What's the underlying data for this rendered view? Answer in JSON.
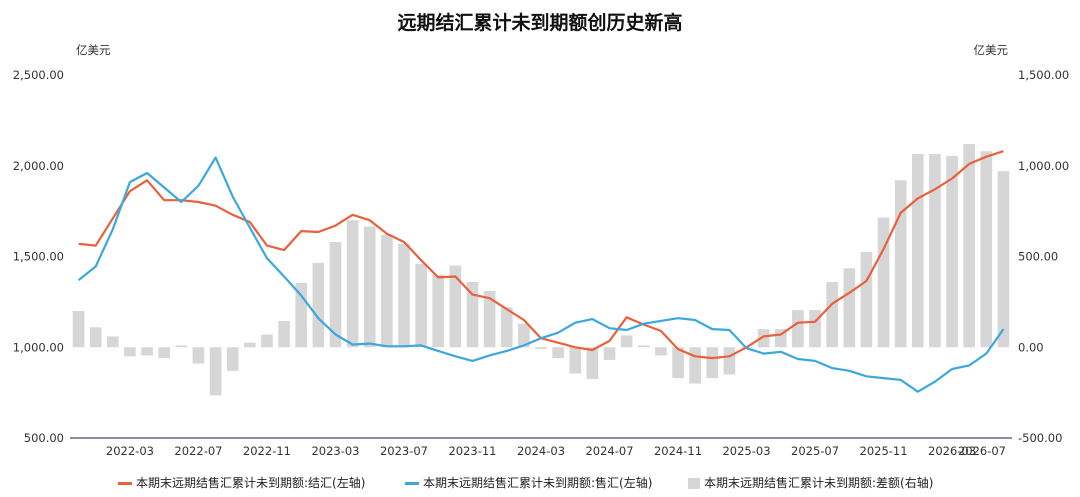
{
  "chart_data": {
    "type": "bar+line",
    "title": "远期结汇累计未到期额创历史新高",
    "left_axis_unit": "亿美元",
    "right_axis_unit": "亿美元",
    "left_ylim": [
      500,
      2500
    ],
    "right_ylim": [
      -500,
      1500
    ],
    "left_ticks": [
      "2,500.00",
      "2,000.00",
      "1,500.00",
      "1,000.00",
      "500.00"
    ],
    "right_ticks": [
      "1,500.00",
      "1,000.00",
      "500.00",
      "0.00",
      "-500.00"
    ],
    "x_tick_labels": [
      "2022-03",
      "2022-07",
      "2022-11",
      "2023-03",
      "2023-07",
      "2023-11",
      "2024-03",
      "2024-07",
      "2024-11",
      "2025-03",
      "2025-07",
      "2025-11",
      "2026-03",
      "2026-07"
    ],
    "categories": [
      "2021-12",
      "2022-01",
      "2022-02",
      "2022-03",
      "2022-04",
      "2022-05",
      "2022-06",
      "2022-07",
      "2022-08",
      "2022-09",
      "2022-10",
      "2022-11",
      "2022-12",
      "2023-01",
      "2023-02",
      "2023-03",
      "2023-04",
      "2023-05",
      "2023-06",
      "2023-07",
      "2023-08",
      "2023-09",
      "2023-10",
      "2023-11",
      "2023-12",
      "2024-01",
      "2024-02",
      "2024-03",
      "2024-04",
      "2024-05",
      "2024-06",
      "2024-07",
      "2024-08",
      "2024-09",
      "2024-10",
      "2024-11",
      "2024-12",
      "2025-01",
      "2025-02",
      "2025-03",
      "2025-04",
      "2025-05",
      "2025-06",
      "2025-07",
      "2025-08",
      "2025-09",
      "2025-10",
      "2025-11",
      "2025-12",
      "2026-01",
      "2026-02",
      "2026-03",
      "2026-04",
      "2026-05",
      "2026-06"
    ],
    "series": [
      {
        "name": "本期末远期结售汇累计未到期额:结汇(左轴)",
        "axis": "left",
        "kind": "line",
        "color": "#E8603C",
        "values": [
          1570,
          1560,
          1710,
          1860,
          1920,
          1810,
          1810,
          1800,
          1780,
          1730,
          1690,
          1560,
          1535,
          1640,
          1635,
          1670,
          1730,
          1700,
          1625,
          1580,
          1480,
          1385,
          1390,
          1290,
          1270,
          1210,
          1150,
          1050,
          1025,
          1000,
          985,
          1035,
          1165,
          1125,
          1090,
          990,
          950,
          940,
          950,
          1000,
          1060,
          1070,
          1135,
          1140,
          1240,
          1300,
          1365,
          1540,
          1740,
          1820,
          1870,
          1930,
          2010,
          2050,
          2080
        ]
      },
      {
        "name": "本期末远期结售汇累计未到期额:售汇(左轴)",
        "axis": "left",
        "kind": "line",
        "color": "#3AA8DC",
        "values": [
          1370,
          1445,
          1650,
          1910,
          1960,
          1880,
          1800,
          1890,
          2045,
          1830,
          1660,
          1490,
          1390,
          1285,
          1160,
          1070,
          1015,
          1020,
          1005,
          1005,
          1010,
          980,
          950,
          925,
          955,
          980,
          1010,
          1050,
          1080,
          1135,
          1155,
          1105,
          1095,
          1130,
          1145,
          1160,
          1150,
          1100,
          1095,
          995,
          965,
          975,
          935,
          925,
          885,
          870,
          840,
          830,
          820,
          755,
          810,
          880,
          900,
          965,
          1100
        ]
      },
      {
        "name": "本期末远期结售汇累计未到期额:差额(右轴)",
        "axis": "right",
        "kind": "bar",
        "color": "#D6D6D6",
        "values": [
          200,
          110,
          60,
          -50,
          -45,
          -60,
          10,
          -90,
          -265,
          -130,
          25,
          70,
          145,
          355,
          465,
          580,
          700,
          665,
          620,
          570,
          460,
          400,
          450,
          360,
          310,
          220,
          130,
          -10,
          -60,
          -145,
          -175,
          -70,
          65,
          10,
          -45,
          -170,
          -200,
          -170,
          -150,
          -5,
          100,
          100,
          205,
          205,
          360,
          435,
          525,
          715,
          920,
          1065,
          1065,
          1055,
          1120,
          1080,
          970
        ]
      }
    ]
  },
  "legend": {
    "item1": "本期末远期结售汇累计未到期额:结汇(左轴)",
    "item2": "本期末远期结售汇累计未到期额:售汇(左轴)",
    "item3": "本期末远期结售汇累计未到期额:差额(右轴)"
  }
}
